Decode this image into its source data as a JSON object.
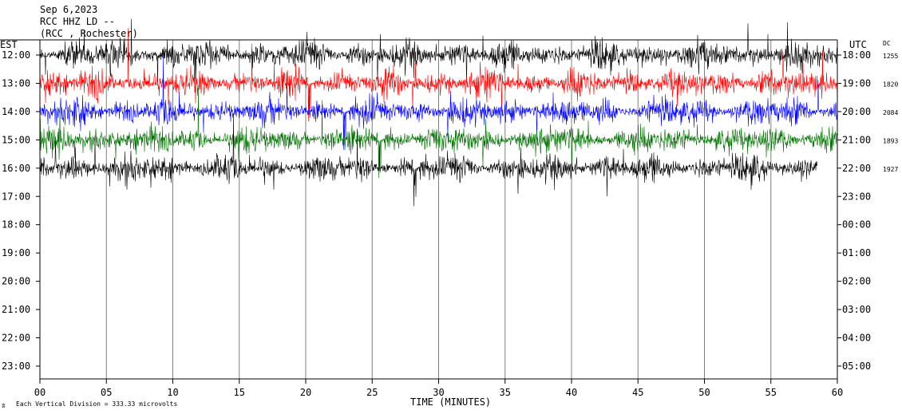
{
  "header": {
    "date": "Sep 6,2023",
    "channel": "RCC HHZ LD --",
    "station": "(RCC , Rochester)"
  },
  "left_axis_title": "EST",
  "right_axis_title": "UTC",
  "dc_title": "DC",
  "footer": {
    "scale_note": "Each Vertical Division =  333.33 microvolts",
    "corner_mark": "ʬ"
  },
  "chart_data": {
    "type": "line",
    "xlabel": "TIME (MINUTES)",
    "x_ticks": [
      "00",
      "05",
      "10",
      "15",
      "20",
      "25",
      "30",
      "35",
      "40",
      "45",
      "50",
      "55",
      "60"
    ],
    "xlim": [
      0,
      60
    ],
    "left_hours": [
      "12:00",
      "13:00",
      "14:00",
      "15:00",
      "16:00",
      "17:00",
      "18:00",
      "19:00",
      "20:00",
      "21:00",
      "22:00",
      "23:00"
    ],
    "right_hours": [
      "18:00",
      "19:00",
      "20:00",
      "21:00",
      "22:00",
      "23:00",
      "00:00",
      "01:00",
      "02:00",
      "03:00",
      "04:00",
      "05:00"
    ],
    "series": [
      {
        "row": 0,
        "color": "#000000",
        "dc": "1255",
        "end_minute": 60
      },
      {
        "row": 1,
        "color": "#ff0000",
        "dc": "1820",
        "end_minute": 60
      },
      {
        "row": 2,
        "color": "#0000ff",
        "dc": "2084",
        "end_minute": 60
      },
      {
        "row": 3,
        "color": "#007000",
        "dc": "1893",
        "end_minute": 60
      },
      {
        "row": 4,
        "color": "#000000",
        "dc": "1927",
        "end_minute": 58.5
      }
    ]
  }
}
